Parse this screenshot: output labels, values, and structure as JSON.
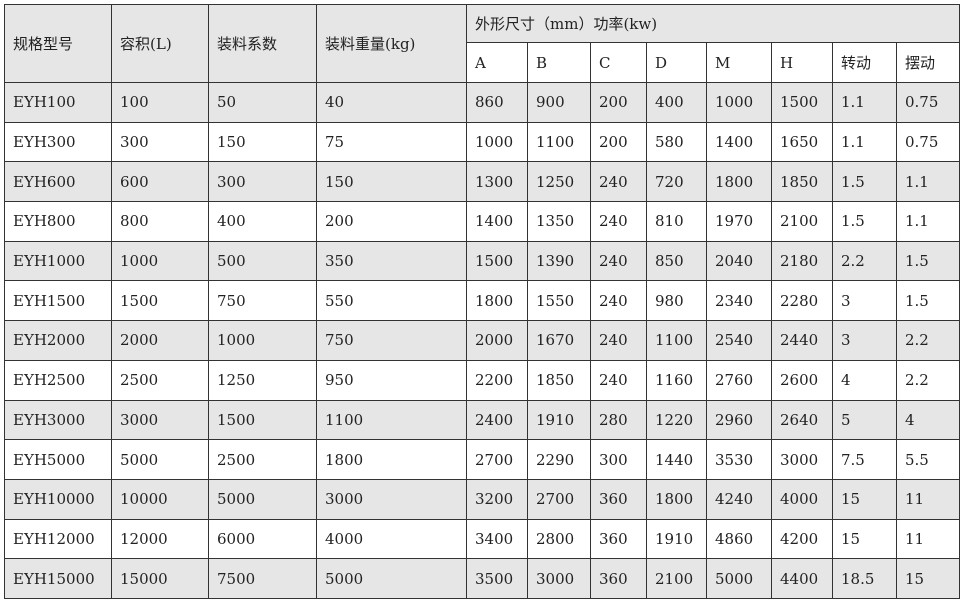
{
  "header": {
    "model": "规格型号",
    "volume": "容积(L)",
    "load_factor": "装料系数",
    "load_weight": "装料重量(kg)",
    "group": "外形尺寸（mm）功率(kw)",
    "sub": [
      "A",
      "B",
      "C",
      "D",
      "M",
      "H",
      "转动",
      "摆动"
    ]
  },
  "rows": [
    [
      "EYH100",
      "100",
      "50",
      "40",
      "860",
      "900",
      "200",
      "400",
      "1000",
      "1500",
      "1.1",
      "0.75"
    ],
    [
      "EYH300",
      "300",
      "150",
      "75",
      "1000",
      "1100",
      "200",
      "580",
      "1400",
      "1650",
      "1.1",
      "0.75"
    ],
    [
      "EYH600",
      "600",
      "300",
      "150",
      "1300",
      "1250",
      "240",
      "720",
      "1800",
      "1850",
      "1.5",
      "1.1"
    ],
    [
      "EYH800",
      "800",
      "400",
      "200",
      "1400",
      "1350",
      "240",
      "810",
      "1970",
      "2100",
      "1.5",
      "1.1"
    ],
    [
      "EYH1000",
      "1000",
      "500",
      "350",
      "1500",
      "1390",
      "240",
      "850",
      "2040",
      "2180",
      "2.2",
      "1.5"
    ],
    [
      "EYH1500",
      "1500",
      "750",
      "550",
      "1800",
      "1550",
      "240",
      "980",
      "2340",
      "2280",
      "3",
      "1.5"
    ],
    [
      "EYH2000",
      "2000",
      "1000",
      "750",
      "2000",
      "1670",
      "240",
      "1100",
      "2540",
      "2440",
      "3",
      "2.2"
    ],
    [
      "EYH2500",
      "2500",
      "1250",
      "950",
      "2200",
      "1850",
      "240",
      "1160",
      "2760",
      "2600",
      "4",
      "2.2"
    ],
    [
      "EYH3000",
      "3000",
      "1500",
      "1100",
      "2400",
      "1910",
      "280",
      "1220",
      "2960",
      "2640",
      "5",
      "4"
    ],
    [
      "EYH5000",
      "5000",
      "2500",
      "1800",
      "2700",
      "2290",
      "300",
      "1440",
      "3530",
      "3000",
      "7.5",
      "5.5"
    ],
    [
      "EYH10000",
      "10000",
      "5000",
      "3000",
      "3200",
      "2700",
      "360",
      "1800",
      "4240",
      "4000",
      "15",
      "11"
    ],
    [
      "EYH12000",
      "12000",
      "6000",
      "4000",
      "3400",
      "2800",
      "360",
      "1910",
      "4860",
      "4200",
      "15",
      "11"
    ],
    [
      "EYH15000",
      "15000",
      "7500",
      "5000",
      "3500",
      "3000",
      "360",
      "2100",
      "5000",
      "4400",
      "18.5",
      "15"
    ]
  ]
}
